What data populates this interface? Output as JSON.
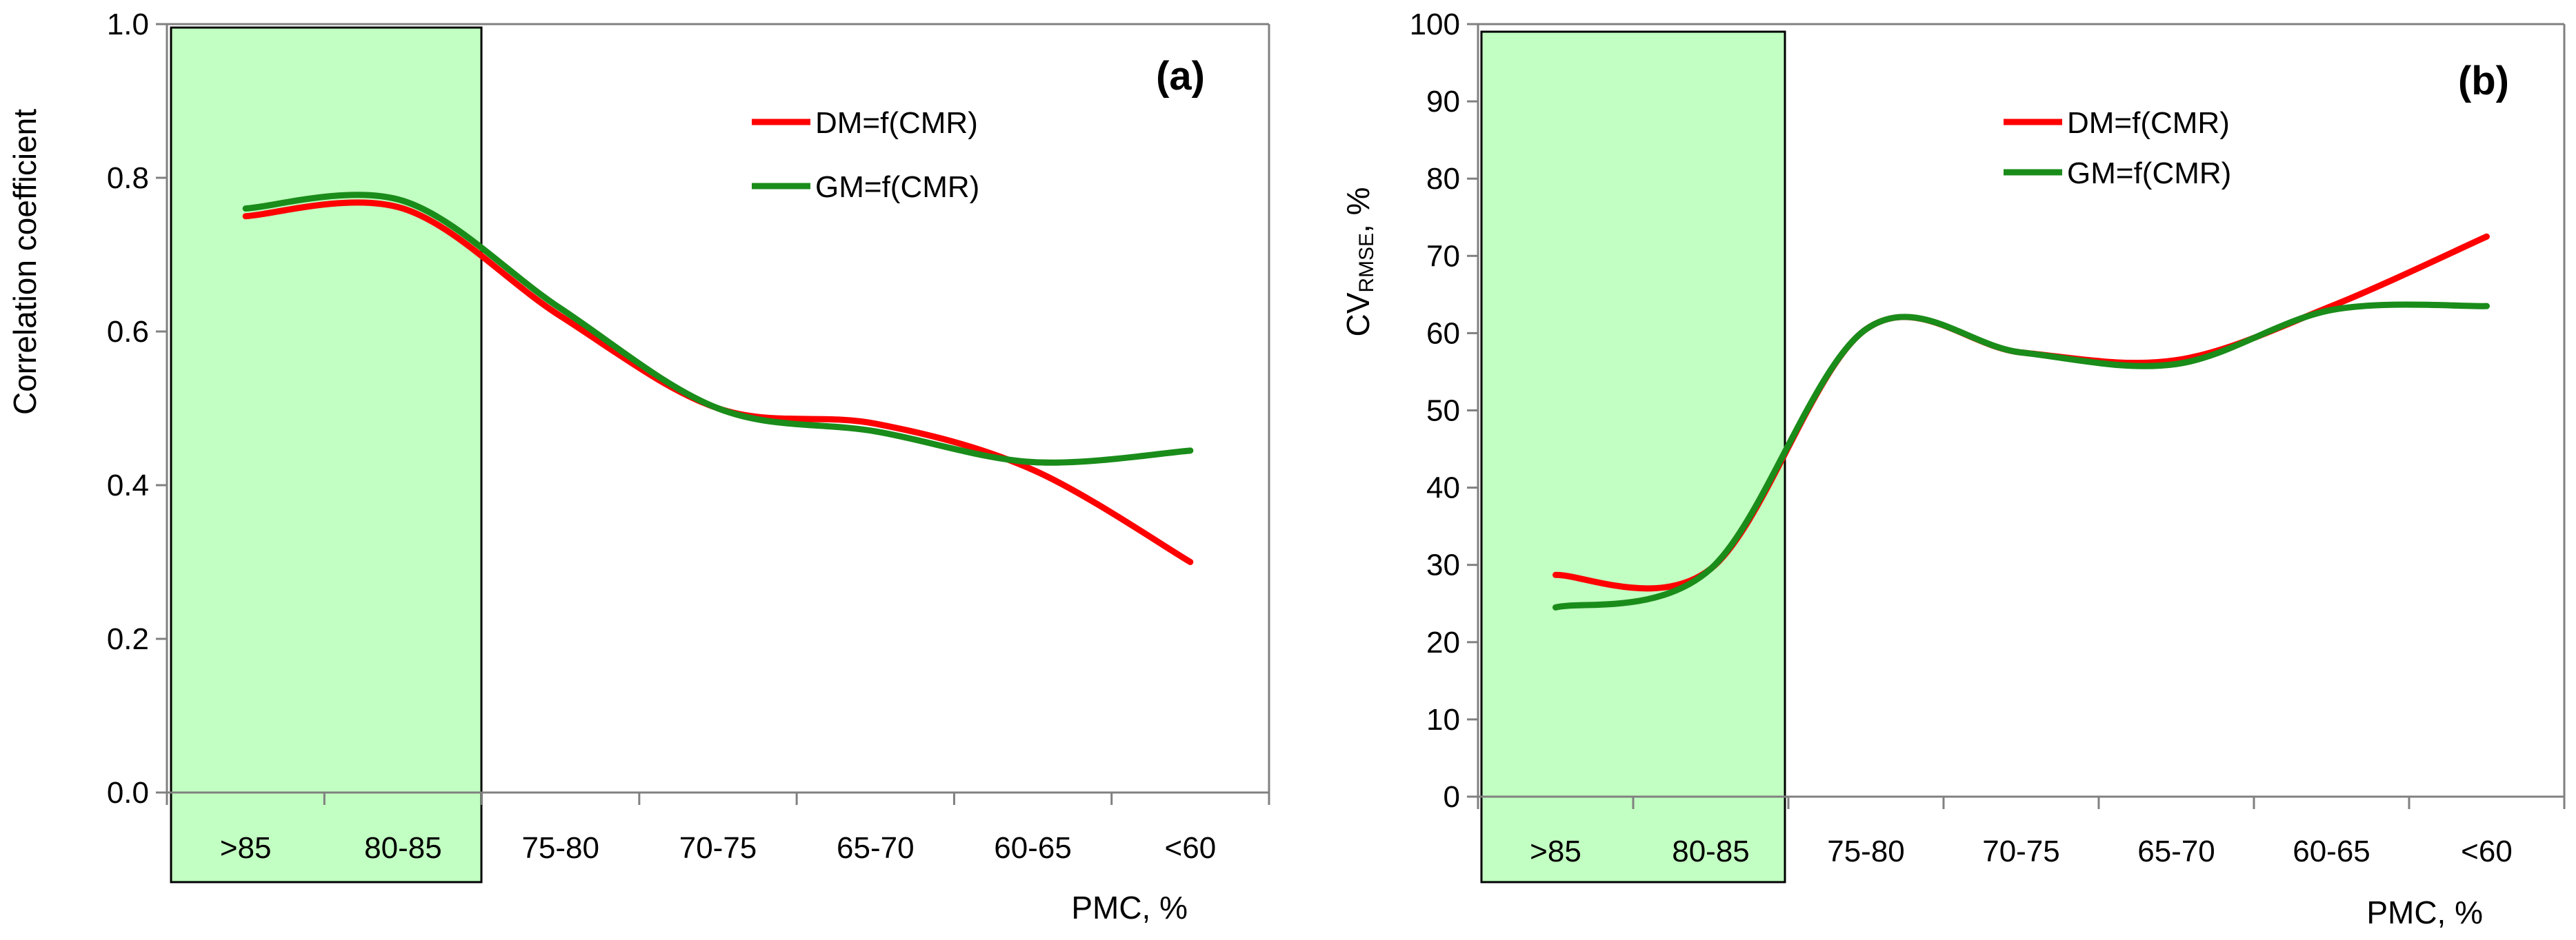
{
  "chart_data": [
    {
      "id": "a",
      "type": "line",
      "panel_label": "(a)",
      "categories": [
        ">85",
        "80-85",
        "75-80",
        "70-75",
        "65-70",
        "60-65",
        "<60"
      ],
      "series": [
        {
          "name": "DM=f(CMR)",
          "color": "#ff0000",
          "values": [
            0.75,
            0.76,
            0.62,
            0.5,
            0.48,
            0.42,
            0.3
          ]
        },
        {
          "name": "GM=f(CMR)",
          "color": "#1a8c1a",
          "values": [
            0.76,
            0.77,
            0.63,
            0.5,
            0.47,
            0.43,
            0.445
          ]
        }
      ],
      "highlight": {
        "from_category": ">85",
        "to_category": "80-85",
        "color": "#c2ffc2"
      },
      "xlabel": "PMC, %",
      "ylabel": "Correlation coefficient",
      "ylim": [
        0,
        1
      ],
      "yticks": [
        "0.0",
        "0.2",
        "0.4",
        "0.6",
        "0.8",
        "1.0"
      ],
      "grid": false,
      "legend_position": "top-right"
    },
    {
      "id": "b",
      "type": "line",
      "panel_label": "(b)",
      "categories": [
        ">85",
        "80-85",
        "75-80",
        "70-75",
        "65-70",
        "60-65",
        "<60"
      ],
      "series": [
        {
          "name": "DM=f(CMR)",
          "color": "#ff0000",
          "values": [
            28.7,
            29.5,
            60.5,
            57.5,
            56.5,
            63.5,
            72.5
          ]
        },
        {
          "name": "GM=f(CMR)",
          "color": "#1a8c1a",
          "values": [
            24.5,
            29.5,
            60.5,
            57.5,
            56.0,
            63.0,
            63.5
          ]
        }
      ],
      "highlight": {
        "from_category": ">85",
        "to_category": "80-85",
        "color": "#c2ffc2"
      },
      "xlabel": "PMC, %",
      "ylabel_main": "CV",
      "ylabel_sub": "RMSE",
      "ylabel_suffix": ", %",
      "ylim": [
        0,
        100
      ],
      "yticks": [
        "0",
        "10",
        "20",
        "30",
        "40",
        "50",
        "60",
        "70",
        "80",
        "90",
        "100"
      ],
      "grid": false,
      "legend_position": "top-right"
    }
  ]
}
